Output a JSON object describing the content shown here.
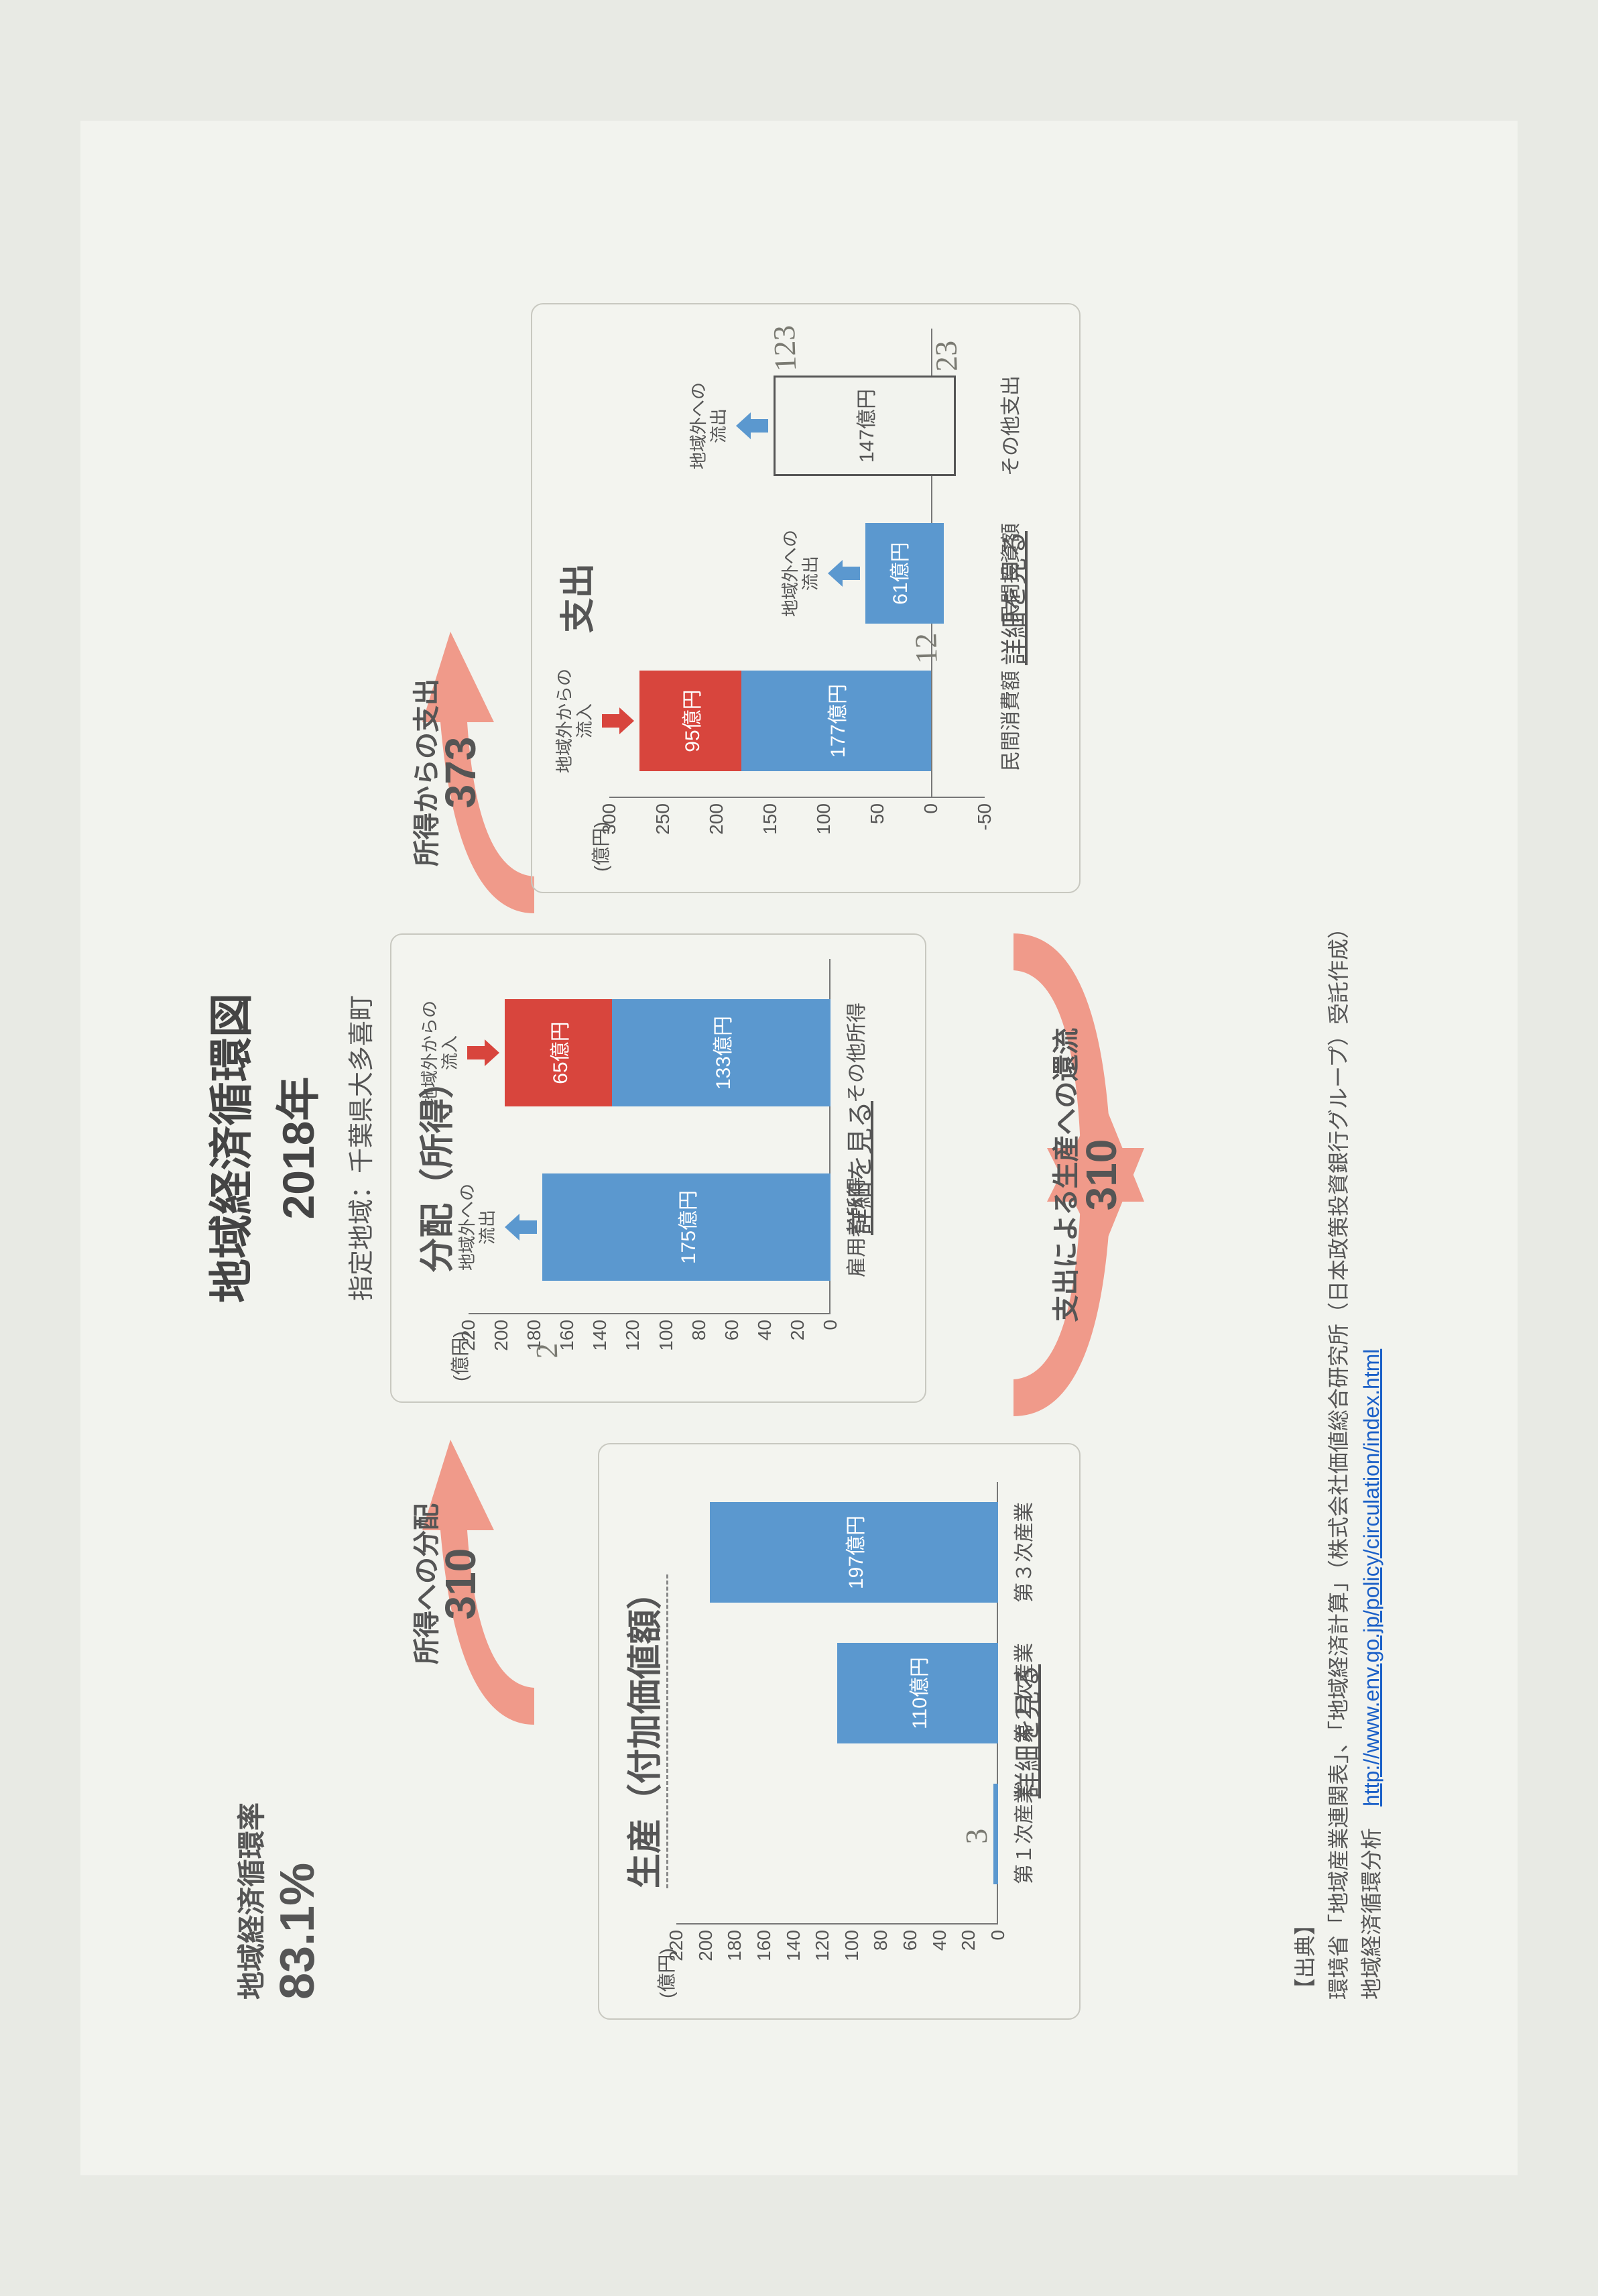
{
  "ratio": {
    "label": "地域経済循環率",
    "value": "83.1%",
    "fontsize_label": 42,
    "fontsize_value": 72
  },
  "title": {
    "main": "地域経済循環図",
    "year": "2018年",
    "region": "指定地域：千葉県大多喜町"
  },
  "colors": {
    "bar_blue": "#5b98cf",
    "bar_red": "#d8453d",
    "arrow_pink": "#f09a8a",
    "flow_blue": "#5b98cf",
    "flow_red": "#d8453d",
    "axis": "#777777",
    "text": "#555555",
    "panel_border": "#c8c8c0",
    "bg": "#f2f3ee"
  },
  "arrows": {
    "top_left": {
      "label1": "所得への分配",
      "value": "310"
    },
    "top_right": {
      "label1": "所得からの支出",
      "value": "373"
    },
    "bottom": {
      "label1": "支出による生産への還流",
      "value": "310"
    }
  },
  "panel_production": {
    "title": "生産（付加価値額）",
    "y_unit": "(億円)",
    "y_ticks": [
      0,
      20,
      40,
      60,
      80,
      100,
      120,
      140,
      160,
      180,
      200,
      220
    ],
    "y_max": 220,
    "categories": [
      "第１次産業",
      "第２次産業",
      "第３次産業"
    ],
    "values": [
      3,
      110,
      197
    ],
    "bar_labels": [
      "",
      "110億円",
      "197億円"
    ],
    "bar_color": "#5b98cf",
    "hand_annotation": "3",
    "detail": "詳細を見る"
  },
  "panel_income": {
    "title": "分配（所得）",
    "y_unit": "(億円)",
    "y_ticks": [
      0,
      20,
      40,
      60,
      80,
      100,
      120,
      140,
      160,
      180,
      200,
      220
    ],
    "y_max": 220,
    "categories": [
      "雇用者所得",
      "その他所得"
    ],
    "bars": [
      {
        "segments": [
          {
            "v": 175,
            "label": "175億円",
            "color": "#5b98cf"
          }
        ],
        "topflow": "out",
        "top_label": "地域外への\n流出"
      },
      {
        "segments": [
          {
            "v": 133,
            "label": "133億円",
            "color": "#5b98cf"
          },
          {
            "v": 65,
            "label": "65億円",
            "color": "#d8453d"
          }
        ],
        "topflow": "in",
        "top_label": "地域外からの\n流入"
      }
    ],
    "hand_annotation": "2",
    "detail": "詳細を見る"
  },
  "panel_expend": {
    "title": "支出",
    "y_unit": "(億円)",
    "y_ticks": [
      -50,
      0,
      50,
      100,
      150,
      200,
      250,
      300
    ],
    "y_min": -50,
    "y_max": 300,
    "categories": [
      "民間消費額",
      "民間投資額",
      "その他支出"
    ],
    "bars": [
      {
        "segments": [
          {
            "v": 177,
            "label": "177億円",
            "color": "#5b98cf"
          },
          {
            "v": 95,
            "label": "95億円",
            "color": "#d8453d"
          }
        ],
        "topflow": "in",
        "top_label": "地域外からの\n流入"
      },
      {
        "segments": [
          {
            "v": 61,
            "label": "61億円",
            "color": "#5b98cf"
          }
        ],
        "neg": -12,
        "topflow": "out",
        "top_label": "地域外への\n流出",
        "hand": "12"
      },
      {
        "box": {
          "v": 147,
          "label": "147億円",
          "neg": -23
        },
        "topflow": "out",
        "top_label": "地域外への\n流出",
        "hand_top": "123",
        "hand_bot": "23"
      }
    ],
    "detail": "詳細を見る"
  },
  "source": {
    "head": "【出典】",
    "line1": "環境省「地域産業連関表」、「地域経済計算」（株式会社価値総合研究所（日本政策投資銀行グループ）受託作成）",
    "line2_prefix": "地域経済循環分析　",
    "link": "http://www.env.go.jp/policy/circulation/index.html"
  }
}
